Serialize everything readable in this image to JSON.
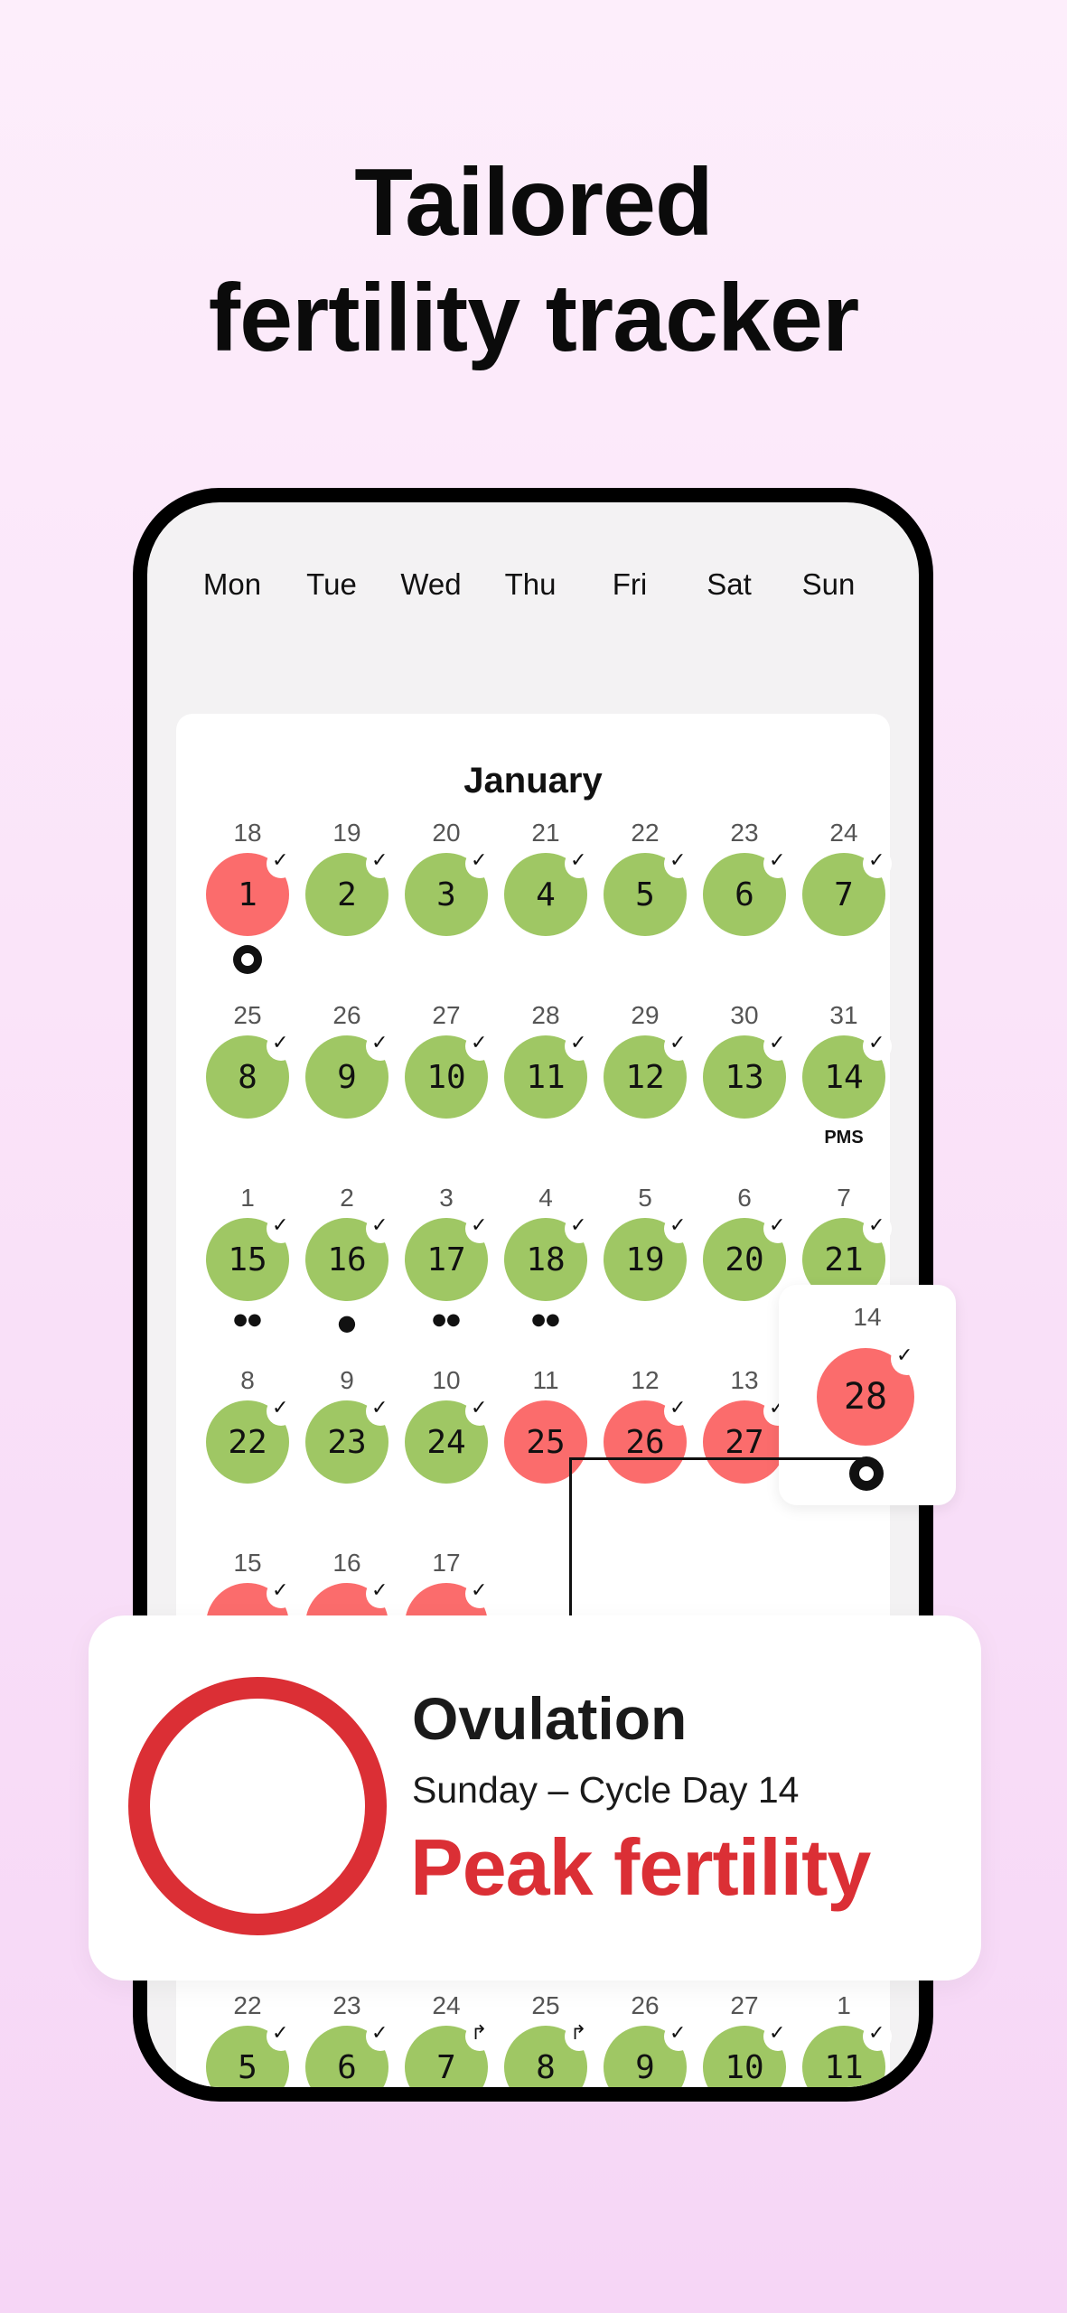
{
  "headline": {
    "line1": "Tailored",
    "line2": "fertility tracker"
  },
  "weekdays": [
    "Mon",
    "Tue",
    "Wed",
    "Thu",
    "Fri",
    "Sat",
    "Sun"
  ],
  "calendar": {
    "month": "January",
    "rows": [
      [
        {
          "date": "18",
          "day": "1",
          "color": "red",
          "checked": true,
          "icon": "ovulation"
        },
        {
          "date": "19",
          "day": "2",
          "color": "green",
          "checked": true
        },
        {
          "date": "20",
          "day": "3",
          "color": "green",
          "checked": true
        },
        {
          "date": "21",
          "day": "4",
          "color": "green",
          "checked": true
        },
        {
          "date": "22",
          "day": "5",
          "color": "green",
          "checked": true
        },
        {
          "date": "23",
          "day": "6",
          "color": "green",
          "checked": true
        },
        {
          "date": "24",
          "day": "7",
          "color": "green",
          "checked": true
        }
      ],
      [
        {
          "date": "25",
          "day": "8",
          "color": "green",
          "checked": true
        },
        {
          "date": "26",
          "day": "9",
          "color": "green",
          "checked": true
        },
        {
          "date": "27",
          "day": "10",
          "color": "green",
          "checked": true
        },
        {
          "date": "28",
          "day": "11",
          "color": "green",
          "checked": true
        },
        {
          "date": "29",
          "day": "12",
          "color": "green",
          "checked": true
        },
        {
          "date": "30",
          "day": "13",
          "color": "green",
          "checked": true
        },
        {
          "date": "31",
          "day": "14",
          "color": "green",
          "checked": true,
          "label": "PMS"
        }
      ],
      [
        {
          "date": "1",
          "day": "15",
          "color": "green",
          "checked": true,
          "icon": "drops"
        },
        {
          "date": "2",
          "day": "16",
          "color": "green",
          "checked": true,
          "icon": "drop"
        },
        {
          "date": "3",
          "day": "17",
          "color": "green",
          "checked": true,
          "icon": "drops"
        },
        {
          "date": "4",
          "day": "18",
          "color": "green",
          "checked": true,
          "icon": "drops"
        },
        {
          "date": "5",
          "day": "19",
          "color": "green",
          "checked": true
        },
        {
          "date": "6",
          "day": "20",
          "color": "green",
          "checked": true
        },
        {
          "date": "7",
          "day": "21",
          "color": "green",
          "checked": true
        }
      ],
      [
        {
          "date": "8",
          "day": "22",
          "color": "green",
          "checked": true
        },
        {
          "date": "9",
          "day": "23",
          "color": "green",
          "checked": true
        },
        {
          "date": "10",
          "day": "24",
          "color": "green",
          "checked": true
        },
        {
          "date": "11",
          "day": "25",
          "color": "red",
          "checked": false
        },
        {
          "date": "12",
          "day": "26",
          "color": "red",
          "checked": true
        },
        {
          "date": "13",
          "day": "27",
          "color": "red",
          "checked": true
        },
        {
          "date": "14",
          "day": "28",
          "color": "red",
          "checked": true
        }
      ],
      [
        {
          "date": "15",
          "day": "",
          "color": "red",
          "checked": true
        },
        {
          "date": "16",
          "day": "",
          "color": "red",
          "checked": true
        },
        {
          "date": "17",
          "day": "",
          "color": "red",
          "checked": true
        }
      ]
    ],
    "bottom_row": [
      {
        "date": "22",
        "day": "5",
        "color": "green",
        "checked": true
      },
      {
        "date": "23",
        "day": "6",
        "color": "green",
        "checked": true
      },
      {
        "date": "24",
        "day": "7",
        "color": "green",
        "mark": "↱"
      },
      {
        "date": "25",
        "day": "8",
        "color": "green",
        "mark": "↱"
      },
      {
        "date": "26",
        "day": "9",
        "color": "green",
        "checked": true
      },
      {
        "date": "27",
        "day": "10",
        "color": "green",
        "checked": true
      },
      {
        "date": "1",
        "day": "11",
        "color": "green",
        "checked": true
      }
    ]
  },
  "popup": {
    "date": "14",
    "day": "28",
    "color": "red",
    "icon": "ovulation"
  },
  "info_card": {
    "title": "Ovulation",
    "subtitle": "Sunday – Cycle Day 14",
    "status": "Peak fertility",
    "ring_color": "#db2f35"
  },
  "colors": {
    "green": "#9fc764",
    "red": "#fb6c6c",
    "accent": "#db2f35"
  },
  "icons": {
    "check": "checkmark-icon",
    "drop": "drop-icon",
    "drops": "drops-icon",
    "ovulation": "ovulation-dot-icon"
  }
}
